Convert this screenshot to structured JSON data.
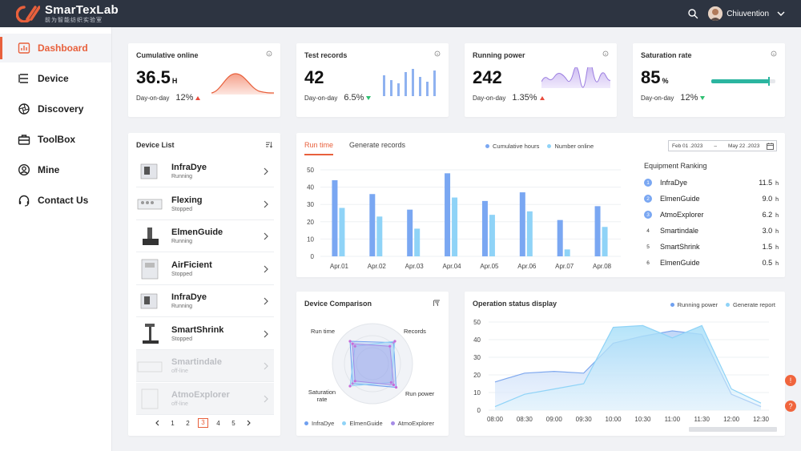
{
  "app": {
    "name": "SmarTexLab",
    "subtitle": "前为智能纺织实验室"
  },
  "user": {
    "name": "Chiuvention"
  },
  "nav": [
    {
      "label": "Dashboard",
      "icon": "chart-box-icon",
      "active": true
    },
    {
      "label": "Device",
      "icon": "list-icon",
      "active": false
    },
    {
      "label": "Discovery",
      "icon": "aperture-icon",
      "active": false
    },
    {
      "label": "ToolBox",
      "icon": "toolbox-icon",
      "active": false
    },
    {
      "label": "Mine",
      "icon": "user-circle-icon",
      "active": false
    },
    {
      "label": "Contact Us",
      "icon": "headset-icon",
      "active": false
    }
  ],
  "stats": [
    {
      "title": "Cumulative online",
      "value": "36.5",
      "unit": "H",
      "foot": "Day-on-day",
      "pct": "12%",
      "trend": "up"
    },
    {
      "title": "Test records",
      "value": "42",
      "unit": "",
      "foot": "Day-on-day",
      "pct": "6.5%",
      "trend": "down"
    },
    {
      "title": "Running power",
      "value": "242",
      "unit": "",
      "foot": "Day-on-day",
      "pct": "1.35%",
      "trend": "up"
    },
    {
      "title": "Saturation rate",
      "value": "85",
      "unit": "%",
      "foot": "Day-on-day",
      "pct": "12%",
      "trend": "down",
      "level": 0.9
    }
  ],
  "device_list": {
    "title": "Device List",
    "items": [
      {
        "name": "InfraDye",
        "status": "Running",
        "offline": false
      },
      {
        "name": "Flexing",
        "status": "Stopped",
        "offline": false
      },
      {
        "name": "ElmenGuide",
        "status": "Running",
        "offline": false
      },
      {
        "name": "AirFicient",
        "status": "Stopped",
        "offline": false
      },
      {
        "name": "InfraDye",
        "status": "Running",
        "offline": false
      },
      {
        "name": "SmartShrink",
        "status": "Stopped",
        "offline": false
      },
      {
        "name": "Smartindale",
        "status": "off-line",
        "offline": true
      },
      {
        "name": "AtmoExplorer",
        "status": "off-line",
        "offline": true
      }
    ],
    "pages": [
      "1",
      "2",
      "3",
      "4",
      "5"
    ],
    "current_page": "3"
  },
  "run_panel": {
    "tabs": [
      "Run time",
      "Generate records"
    ],
    "legend": [
      "Cumulative hours",
      "Number online"
    ],
    "date_from": "Feb 01 .2023",
    "date_sep": "–",
    "date_to": "May 22 .2023",
    "ranking_title": "Equipment Ranking",
    "ranking": [
      {
        "rank": "1",
        "name": "InfraDye",
        "value": "11.5",
        "unit": "h"
      },
      {
        "rank": "2",
        "name": "ElmenGuide",
        "value": "9.0",
        "unit": "h"
      },
      {
        "rank": "3",
        "name": "AtmoExplorer",
        "value": "6.2",
        "unit": "h"
      },
      {
        "rank": "4",
        "name": "Smartindale",
        "value": "3.0",
        "unit": "h"
      },
      {
        "rank": "5",
        "name": "SmartShrink",
        "value": "1.5",
        "unit": "h"
      },
      {
        "rank": "6",
        "name": "ElmenGuide",
        "value": "0.5",
        "unit": "h"
      }
    ]
  },
  "comparison": {
    "title": "Device Comparison",
    "axes": [
      "Run time",
      "Records",
      "Run power",
      "Saturation rate"
    ],
    "legend": [
      "InfraDye",
      "ElmenGuide",
      "AtmoExplorer"
    ]
  },
  "operation": {
    "title": "Operation status display",
    "legend": [
      "Running power",
      "Generate report"
    ]
  },
  "colors": {
    "accent": "#e8603c",
    "bar_dark": "#7aa7f2",
    "bar_light": "#8fd3f7",
    "teal": "#2bb5a0"
  },
  "chart_data": [
    {
      "type": "bar",
      "categories": [
        "Apr.01",
        "Apr.02",
        "Apr.03",
        "Apr.04",
        "Apr.05",
        "Apr.06",
        "Apr.07",
        "Apr.08"
      ],
      "series": [
        {
          "name": "Cumulative hours",
          "values": [
            44,
            36,
            27,
            48,
            32,
            37,
            21,
            29
          ]
        },
        {
          "name": "Number online",
          "values": [
            28,
            23,
            16,
            34,
            24,
            26,
            4,
            17
          ]
        }
      ],
      "ylim": [
        0,
        50
      ],
      "yticks": [
        0,
        10,
        20,
        30,
        40,
        50
      ]
    },
    {
      "type": "area",
      "x": [
        "08:00",
        "08:30",
        "09:00",
        "09:30",
        "10:00",
        "10:30",
        "11:00",
        "11:30",
        "12:00",
        "12:30"
      ],
      "series": [
        {
          "name": "Running power",
          "values": [
            16,
            21,
            22,
            21,
            38,
            42,
            45,
            43,
            9,
            2
          ]
        },
        {
          "name": "Generate report",
          "values": [
            2,
            9,
            12,
            15,
            47,
            48,
            41,
            48,
            12,
            4
          ]
        }
      ],
      "ylim": [
        0,
        50
      ],
      "yticks": [
        0,
        10,
        20,
        30,
        40,
        50
      ]
    },
    {
      "type": "radar",
      "axes": [
        "Run time",
        "Records",
        "Run power",
        "Saturation rate"
      ],
      "series": [
        {
          "name": "InfraDye",
          "values": [
            0.9,
            0.85,
            0.95,
            0.8
          ]
        },
        {
          "name": "ElmenGuide",
          "values": [
            0.7,
            0.9,
            0.75,
            0.9
          ]
        },
        {
          "name": "AtmoExplorer",
          "values": [
            0.8,
            0.7,
            0.85,
            0.7
          ]
        }
      ]
    }
  ]
}
